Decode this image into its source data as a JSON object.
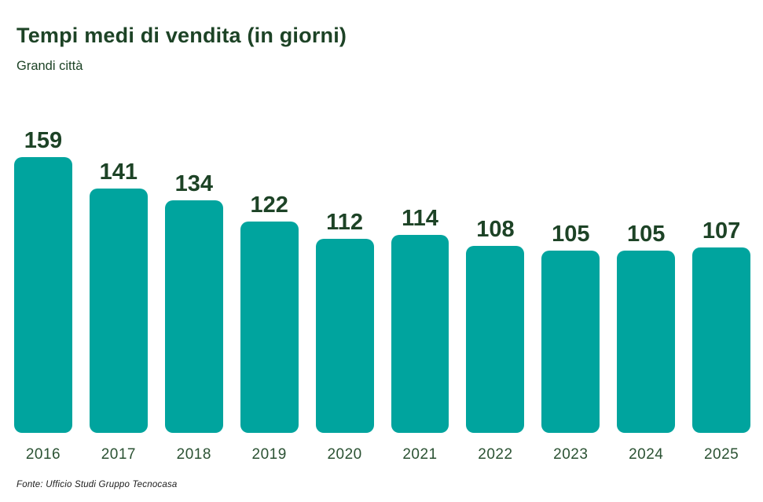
{
  "header": {
    "title": "Tempi medi di vendita (in giorni)",
    "subtitle": "Grandi città"
  },
  "chart_data": {
    "type": "bar",
    "categories": [
      "2016",
      "2017",
      "2018",
      "2019",
      "2020",
      "2021",
      "2022",
      "2023",
      "2024",
      "2025"
    ],
    "values": [
      159,
      141,
      134,
      122,
      112,
      114,
      108,
      105,
      105,
      107
    ],
    "title": "Tempi medi di vendita (in giorni)",
    "subtitle": "Grandi città",
    "xlabel": "",
    "ylabel": "",
    "ylim": [
      0,
      159
    ],
    "grid": false,
    "legend": false,
    "value_labels_shown": true,
    "bar_color": "#00A49E",
    "label_color": "#1D4326",
    "year_label_color": "#2B5233"
  },
  "footer": {
    "source": "Fonte: Ufficio Studi Gruppo Tecnocasa"
  }
}
